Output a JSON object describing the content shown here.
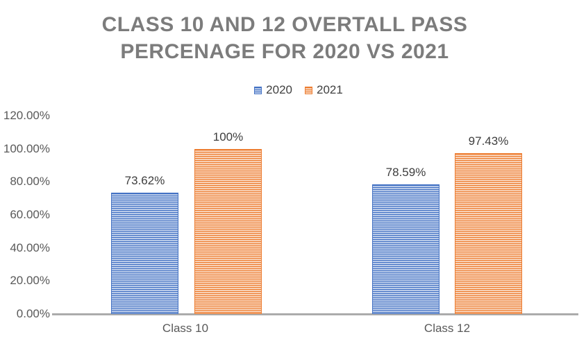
{
  "chart_data": {
    "type": "bar",
    "title": "CLASS 10 AND 12 OVERTALL PASS PERCENAGE FOR 2020 VS 2021",
    "title_lines": [
      "CLASS 10 AND 12 OVERTALL PASS",
      "PERCENAGE FOR 2020 VS 2021"
    ],
    "categories": [
      "Class 10",
      "Class 12"
    ],
    "series": [
      {
        "name": "2020",
        "color": "#4472C4",
        "values": [
          73.62,
          78.59
        ],
        "labels": [
          "73.62%",
          "78.59%"
        ]
      },
      {
        "name": "2021",
        "color": "#ED7D31",
        "values": [
          100,
          97.43
        ],
        "labels": [
          "100%",
          "97.43%"
        ]
      }
    ],
    "ylim": [
      0,
      120
    ],
    "ytick_step": 20,
    "ytick_labels": [
      "0.00%",
      "20.00%",
      "40.00%",
      "60.00%",
      "80.00%",
      "100.00%",
      "120.00%"
    ],
    "grid": false,
    "legend_position": "top",
    "bar_fill_pattern": "horizontal-stripes"
  },
  "colors": {
    "title_text": "#7C7C7C",
    "axis_text": "#595959",
    "data_label_text": "#3D3D3D",
    "axis_line": "#ABABAB",
    "background": "#FFFFFF",
    "series_2020": "#4472C4",
    "series_2021": "#ED7D31"
  }
}
